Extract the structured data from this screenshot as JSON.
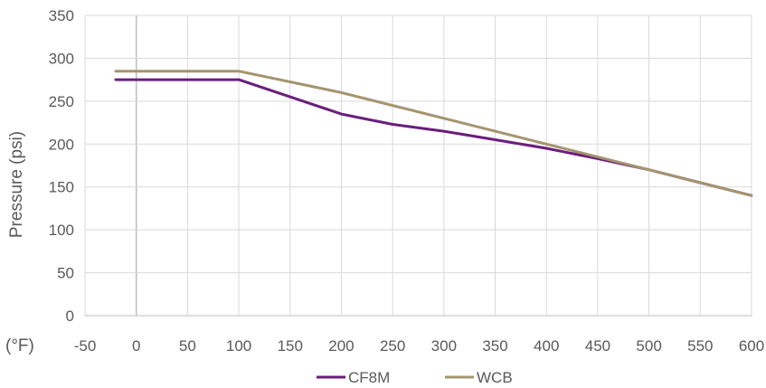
{
  "chart_data": {
    "type": "line",
    "ylabel": "Pressure (psi)",
    "xlabel": "(°F)",
    "xlim": [
      -50,
      600
    ],
    "ylim": [
      0,
      350
    ],
    "x_ticks": [
      -50,
      0,
      50,
      100,
      150,
      200,
      250,
      300,
      350,
      400,
      450,
      500,
      550,
      600
    ],
    "y_ticks": [
      0,
      50,
      100,
      150,
      200,
      250,
      300,
      350
    ],
    "grid": true,
    "legend_position": "bottom",
    "series": [
      {
        "name": "CF8M",
        "color": "#6a1e7c",
        "points": [
          [
            -20,
            275
          ],
          [
            100,
            275
          ],
          [
            150,
            255
          ],
          [
            200,
            235
          ],
          [
            250,
            223
          ],
          [
            300,
            215
          ],
          [
            350,
            205
          ],
          [
            400,
            195
          ],
          [
            450,
            183
          ],
          [
            500,
            170
          ],
          [
            550,
            155
          ],
          [
            600,
            140
          ]
        ]
      },
      {
        "name": "WCB",
        "color": "#a4946f",
        "points": [
          [
            -20,
            285
          ],
          [
            100,
            285
          ],
          [
            200,
            260
          ],
          [
            300,
            230
          ],
          [
            400,
            200
          ],
          [
            500,
            170
          ],
          [
            600,
            140
          ]
        ]
      }
    ]
  }
}
